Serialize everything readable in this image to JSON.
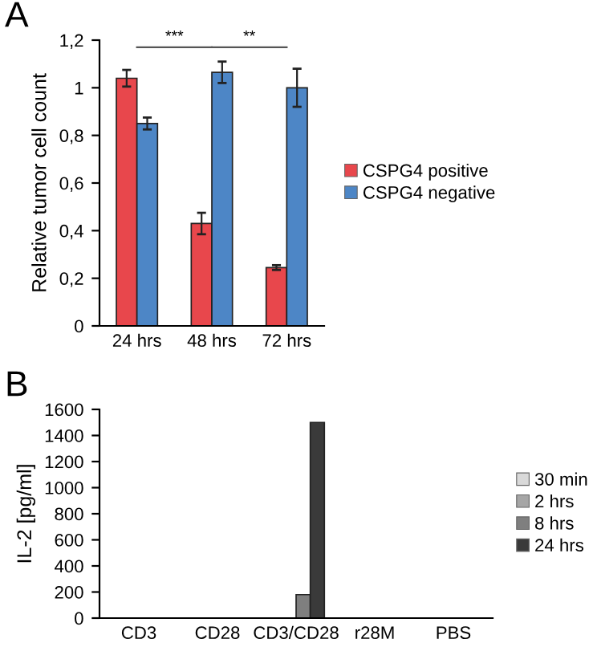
{
  "chart_data": [
    {
      "type": "bar",
      "title": "A",
      "ylabel": "Relative tumor cell count",
      "categories": [
        "24 hrs",
        "48 hrs",
        "72 hrs"
      ],
      "series": [
        {
          "name": "CSPG4 positive",
          "color": "#e8474c",
          "values": [
            1.04,
            0.43,
            0.245
          ],
          "errors": [
            0.035,
            0.045,
            0.01
          ]
        },
        {
          "name": "CSPG4 negative",
          "color": "#4d86c6",
          "values": [
            0.85,
            1.065,
            1.0
          ],
          "errors": [
            0.025,
            0.045,
            0.08
          ]
        }
      ],
      "ylim": [
        0,
        1.2
      ],
      "yticks": [
        0,
        {
          "value": 0.2,
          "label": "0,2"
        },
        {
          "value": 0.4,
          "label": "0,4"
        },
        {
          "value": 0.6,
          "label": "0,6"
        },
        {
          "value": 0.8,
          "label": "0,8"
        },
        1,
        {
          "value": 1.2,
          "label": "1,2"
        }
      ],
      "annotations": [
        "***",
        "**"
      ],
      "legend": "right",
      "grid": false
    },
    {
      "type": "bar",
      "title": "B",
      "ylabel": "IL-2 [pg/ml]",
      "categories": [
        "CD3",
        "CD28",
        "CD3/CD28",
        "r28M",
        "PBS"
      ],
      "series": [
        {
          "name": "30 min",
          "color": "#d9d9d9",
          "values": [
            0,
            0,
            0,
            0,
            0
          ]
        },
        {
          "name": "2 hrs",
          "color": "#a6a6a6",
          "values": [
            0,
            0,
            0,
            0,
            0
          ]
        },
        {
          "name": "8 hrs",
          "color": "#7f7f7f",
          "values": [
            0,
            0,
            180,
            0,
            0
          ]
        },
        {
          "name": "24 hrs",
          "color": "#3a3a3a",
          "values": [
            0,
            0,
            1500,
            0,
            0
          ]
        }
      ],
      "ylim": [
        0,
        1600
      ],
      "yticks": [
        0,
        200,
        400,
        600,
        800,
        1000,
        1200,
        1400,
        1600
      ],
      "legend": "right",
      "grid": false
    }
  ]
}
